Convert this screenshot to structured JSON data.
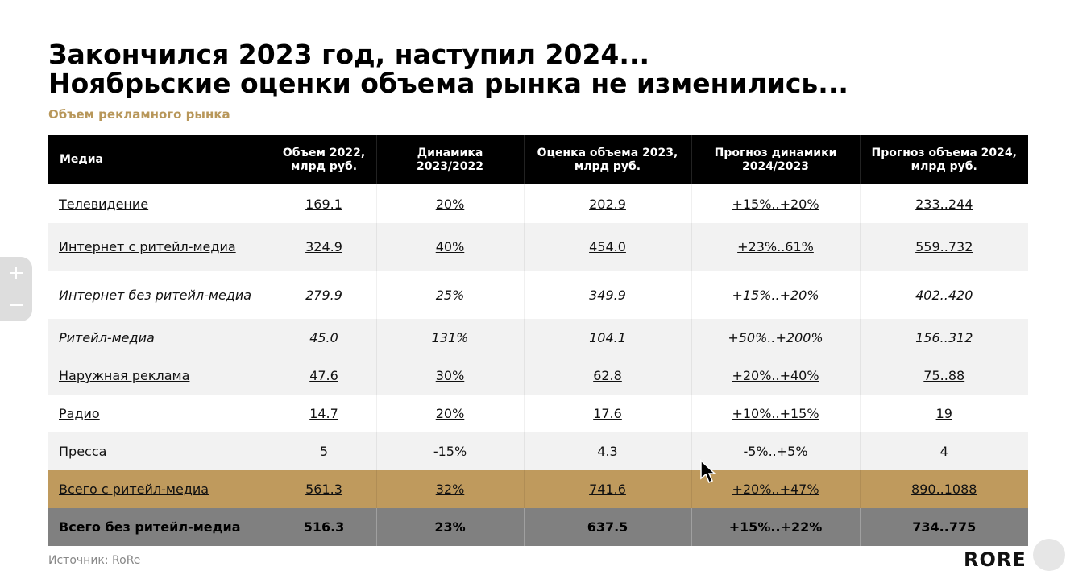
{
  "header": {
    "title": [
      "Закончился 2023 год, наступил 2024...",
      "Ноябрьские оценки объема рынка не изменились..."
    ],
    "subtitle": "Объем рекламного рынка"
  },
  "table": {
    "columns": [
      "Медиа",
      "Объем 2022,\nмлрд руб.",
      "Динамика\n2023/2022",
      "Оценка объема 2023,\nмлрд руб.",
      "Прогноз динамики\n2024/2023",
      "Прогноз объема 2024,\nмлрд руб."
    ],
    "rows": [
      [
        "Телевидение",
        "169.1",
        "20%",
        "202.9",
        "+15%..+20%",
        "233..244"
      ],
      [
        "Интернет с ритейл-медиа",
        "324.9",
        "40%",
        "454.0",
        "+23%..61%",
        "559..732"
      ],
      [
        "Интернет без ритейл-медиа",
        "279.9",
        "25%",
        "349.9",
        "+15%..+20%",
        "402..420"
      ],
      [
        "Ритейл-медиа",
        "45.0",
        "131%",
        "104.1",
        "+50%..+200%",
        "156..312"
      ],
      [
        "Наружная реклама",
        "47.6",
        "30%",
        "62.8",
        "+20%..+40%",
        "75..88"
      ],
      [
        "Радио",
        "14.7",
        "20%",
        "17.6",
        "+10%..+15%",
        "19"
      ],
      [
        "Пресса",
        "5",
        "-15%",
        "4.3",
        "-5%..+5%",
        "4"
      ],
      [
        "Всего с ритейл-медиа",
        "561.3",
        "32%",
        "741.6",
        "+20%..+47%",
        "890..1088"
      ],
      [
        "Всего без ритейл-медиа",
        "516.3",
        "23%",
        "637.5",
        "+15%..+22%",
        "734..775"
      ]
    ]
  },
  "footer": {
    "source": "Источник:  RoRe",
    "logo": "RORE"
  }
}
